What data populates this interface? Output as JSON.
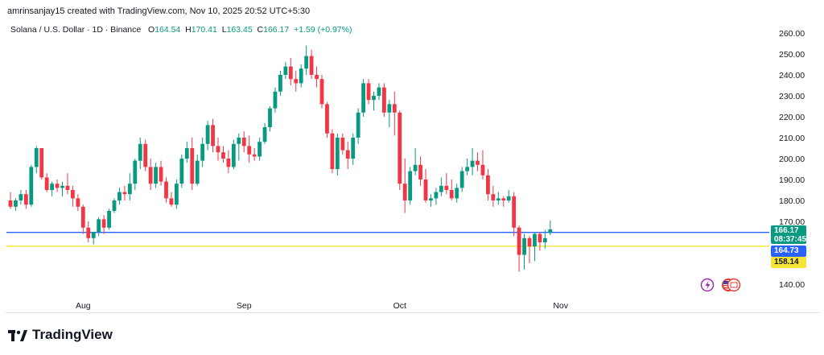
{
  "header": {
    "created_line": "amrinsanjay15 created with TradingView.com, Nov 10, 2025 20:52 UTC+5:30",
    "symbol": "Solana / U.S. Dollar · 1D · Binance",
    "o_label": "O",
    "o_value": "164.54",
    "h_label": "H",
    "h_value": "170.41",
    "l_label": "L",
    "l_value": "163.45",
    "c_label": "C",
    "c_value": "166.17",
    "change": "+1.59 (+0.97%)"
  },
  "brand": {
    "name": "TradingView"
  },
  "colors": {
    "up": "#089981",
    "down": "#f23645",
    "blue_line": "#2962ff",
    "yellow_line": "#f5e538"
  },
  "price_tags": {
    "last_price": "166.17",
    "countdown": "08:37:45",
    "blue_level": "164.73",
    "yellow_level": "158.14"
  },
  "chart_data": {
    "type": "candlestick",
    "title": "Solana / U.S. Dollar · 1D · Binance",
    "ylim": [
      136,
      262
    ],
    "y_ticks": [
      140,
      170,
      180,
      190,
      200,
      210,
      220,
      230,
      240,
      250,
      260
    ],
    "y_tick_labels": [
      "140.00",
      "170.00",
      "180.00",
      "190.00",
      "200.00",
      "210.00",
      "220.00",
      "230.00",
      "240.00",
      "250.00",
      "260.00"
    ],
    "x_labels": [
      {
        "label": "Aug",
        "index": 14
      },
      {
        "label": "Sep",
        "index": 45
      },
      {
        "label": "Oct",
        "index": 75
      },
      {
        "label": "Nov",
        "index": 106
      }
    ],
    "horizontal_lines": [
      {
        "value": 164.73,
        "color": "#2962ff"
      },
      {
        "value": 158.14,
        "color": "#f5e538"
      }
    ],
    "ohlc": [
      [
        180,
        184,
        176,
        177
      ],
      [
        177,
        181,
        175,
        180
      ],
      [
        180,
        185,
        178,
        183
      ],
      [
        183,
        185,
        176,
        178
      ],
      [
        178,
        197,
        177,
        196
      ],
      [
        196,
        206,
        193,
        205
      ],
      [
        205,
        205,
        190,
        191
      ],
      [
        191,
        193,
        184,
        185
      ],
      [
        185,
        189,
        182,
        188
      ],
      [
        188,
        190,
        184,
        186
      ],
      [
        186,
        189,
        182,
        187
      ],
      [
        187,
        193,
        183,
        185
      ],
      [
        185,
        187,
        177,
        181
      ],
      [
        181,
        183,
        175,
        177
      ],
      [
        177,
        178,
        164,
        167
      ],
      [
        167,
        170,
        160,
        162
      ],
      [
        162,
        165,
        159,
        165
      ],
      [
        165,
        172,
        163,
        171
      ],
      [
        171,
        173,
        164,
        167
      ],
      [
        167,
        176,
        166,
        175
      ],
      [
        175,
        181,
        174,
        180
      ],
      [
        180,
        186,
        178,
        184
      ],
      [
        184,
        187,
        180,
        183
      ],
      [
        183,
        193,
        180,
        188
      ],
      [
        188,
        200,
        185,
        199
      ],
      [
        199,
        210,
        195,
        207
      ],
      [
        207,
        209,
        194,
        196
      ],
      [
        196,
        200,
        185,
        188
      ],
      [
        188,
        198,
        186,
        196
      ],
      [
        196,
        199,
        187,
        189
      ],
      [
        189,
        191,
        179,
        181
      ],
      [
        181,
        184,
        177,
        178
      ],
      [
        178,
        190,
        176,
        188
      ],
      [
        188,
        202,
        186,
        200
      ],
      [
        200,
        208,
        198,
        205
      ],
      [
        205,
        210,
        185,
        188
      ],
      [
        188,
        202,
        187,
        199
      ],
      [
        199,
        210,
        196,
        207
      ],
      [
        207,
        218,
        204,
        216
      ],
      [
        216,
        219,
        203,
        206
      ],
      [
        206,
        210,
        199,
        203
      ],
      [
        203,
        206,
        198,
        200
      ],
      [
        200,
        204,
        193,
        196
      ],
      [
        196,
        209,
        195,
        207
      ],
      [
        207,
        212,
        199,
        210
      ],
      [
        210,
        213,
        203,
        206
      ],
      [
        206,
        211,
        198,
        202
      ],
      [
        202,
        205,
        199,
        201
      ],
      [
        201,
        210,
        199,
        208
      ],
      [
        208,
        217,
        207,
        215
      ],
      [
        215,
        225,
        213,
        224
      ],
      [
        224,
        234,
        222,
        232
      ],
      [
        232,
        242,
        230,
        240
      ],
      [
        240,
        246,
        238,
        244
      ],
      [
        244,
        248,
        235,
        238
      ],
      [
        238,
        242,
        232,
        236
      ],
      [
        236,
        245,
        234,
        243
      ],
      [
        243,
        254,
        240,
        249
      ],
      [
        249,
        252,
        238,
        240
      ],
      [
        240,
        244,
        234,
        238
      ],
      [
        238,
        240,
        224,
        226
      ],
      [
        226,
        227,
        210,
        212
      ],
      [
        212,
        214,
        193,
        195
      ],
      [
        195,
        212,
        192,
        210
      ],
      [
        210,
        212,
        202,
        204
      ],
      [
        204,
        208,
        195,
        200
      ],
      [
        200,
        212,
        197,
        210
      ],
      [
        210,
        224,
        207,
        222
      ],
      [
        222,
        238,
        220,
        236
      ],
      [
        236,
        238,
        226,
        228
      ],
      [
        228,
        232,
        223,
        230
      ],
      [
        230,
        236,
        228,
        234
      ],
      [
        234,
        236,
        220,
        222
      ],
      [
        222,
        228,
        215,
        226
      ],
      [
        226,
        232,
        211,
        222
      ],
      [
        222,
        223,
        185,
        188
      ],
      [
        188,
        200,
        174,
        180
      ],
      [
        180,
        196,
        178,
        194
      ],
      [
        194,
        205,
        192,
        197
      ],
      [
        197,
        201,
        187,
        190
      ],
      [
        190,
        195,
        179,
        180
      ],
      [
        180,
        183,
        177,
        181
      ],
      [
        181,
        186,
        178,
        184
      ],
      [
        184,
        191,
        182,
        187
      ],
      [
        187,
        193,
        183,
        185
      ],
      [
        185,
        190,
        180,
        181
      ],
      [
        181,
        188,
        179,
        186
      ],
      [
        186,
        196,
        184,
        194
      ],
      [
        194,
        200,
        192,
        196
      ],
      [
        196,
        205,
        192,
        199
      ],
      [
        199,
        203,
        194,
        197
      ],
      [
        197,
        204,
        190,
        192
      ],
      [
        192,
        195,
        180,
        183
      ],
      [
        183,
        187,
        177,
        180
      ],
      [
        180,
        184,
        178,
        181
      ],
      [
        181,
        182,
        177,
        180
      ],
      [
        180,
        185,
        179,
        182
      ],
      [
        182,
        184,
        163,
        167
      ],
      [
        167,
        168,
        146,
        154
      ],
      [
        154,
        164,
        147,
        162
      ],
      [
        162,
        163,
        150,
        158
      ],
      [
        158,
        165,
        151,
        164
      ],
      [
        164,
        165,
        156,
        160
      ],
      [
        160,
        166,
        157,
        162
      ],
      [
        164.54,
        170.41,
        163.45,
        166.17
      ]
    ]
  }
}
